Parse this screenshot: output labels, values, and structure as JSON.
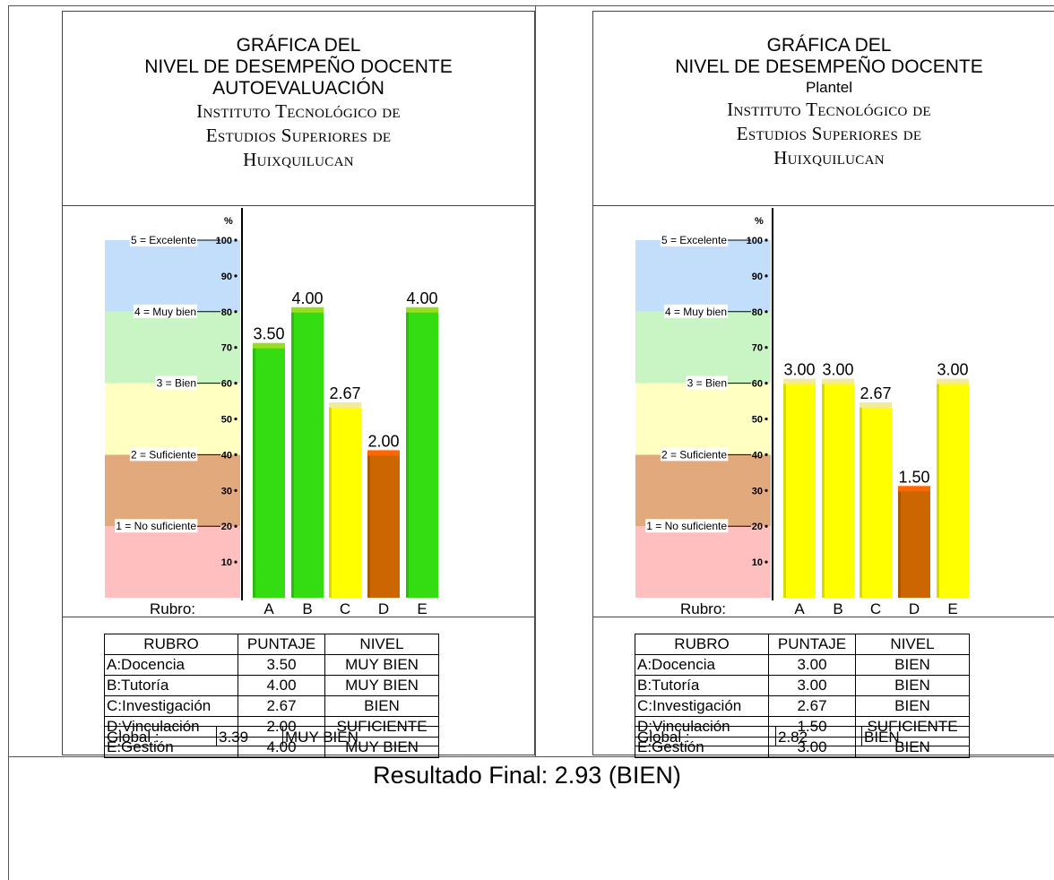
{
  "footer": {
    "result": "Resultado Final: 2.93 (BIEN)"
  },
  "scale": {
    "percent_symbol": "%",
    "ticks": [
      "100",
      "90",
      "80",
      "70",
      "60",
      "50",
      "40",
      "30",
      "20",
      "10"
    ],
    "levels": [
      {
        "label": "5 = Excelente",
        "at": 100
      },
      {
        "label": "4 = Muy bien",
        "at": 80
      },
      {
        "label": "3 = Bien",
        "at": 60
      },
      {
        "label": "2 = Suficiente",
        "at": 40
      },
      {
        "label": "1 = No suficiente",
        "at": 20
      }
    ],
    "band_colors": [
      "#ffbfbf",
      "#e2a97d",
      "#ffffc2",
      "#c8f5c3",
      "#c3defa"
    ],
    "rubro_label": "Rubro:"
  },
  "panels": [
    {
      "title_line1": "GRÁFICA DEL",
      "title_line2": "NIVEL DE DESEMPEÑO DOCENTE",
      "title_line3": "AUTOEVALUACIÓN",
      "institution_line1": "Instituto Tecnológico de",
      "institution_line2": "Estudios Superiores de",
      "institution_line3": "Huixquilucan",
      "table_headers": [
        "RUBRO",
        "PUNTAJE",
        "NIVEL"
      ],
      "rows": [
        {
          "rubro": "A:Docencia",
          "puntaje": "3.50",
          "nivel": "MUY BIEN"
        },
        {
          "rubro": "B:Tutoría",
          "puntaje": "4.00",
          "nivel": "MUY BIEN"
        },
        {
          "rubro": "C:Investigación",
          "puntaje": "2.67",
          "nivel": "BIEN"
        },
        {
          "rubro": "D:Vinculación",
          "puntaje": "2.00",
          "nivel": "SUFICIENTE"
        },
        {
          "rubro": "E:Gestión",
          "puntaje": "4.00",
          "nivel": "MUY BIEN"
        }
      ],
      "global_label": "Global :",
      "global_value": "3.39",
      "global_level": "MUY BIEN"
    },
    {
      "title_line1": "GRÁFICA DEL",
      "title_line2": "NIVEL DE DESEMPEÑO DOCENTE",
      "title_line3": "Plantel",
      "institution_line1": "Instituto Tecnológico de",
      "institution_line2": "Estudios Superiores de",
      "institution_line3": "Huixquilucan",
      "table_headers": [
        "RUBRO",
        "PUNTAJE",
        "NIVEL"
      ],
      "rows": [
        {
          "rubro": "A:Docencia",
          "puntaje": "3.00",
          "nivel": "BIEN"
        },
        {
          "rubro": "B:Tutoría",
          "puntaje": "3.00",
          "nivel": "BIEN"
        },
        {
          "rubro": "C:Investigación",
          "puntaje": "2.67",
          "nivel": "BIEN"
        },
        {
          "rubro": "D:Vinculación",
          "puntaje": "1.50",
          "nivel": "SUFICIENTE"
        },
        {
          "rubro": "E:Gestión",
          "puntaje": "3.00",
          "nivel": "BIEN"
        }
      ],
      "global_label": "Global :",
      "global_value": "2.82",
      "global_level": "BIEN"
    }
  ],
  "chart_data": [
    {
      "type": "bar",
      "categories": [
        "A",
        "B",
        "C",
        "D",
        "E"
      ],
      "values": [
        3.5,
        4.0,
        2.67,
        2.0,
        4.0
      ],
      "labels": [
        "3.50",
        "4.00",
        "2.67",
        "2.00",
        "4.00"
      ],
      "percent": [
        70,
        80,
        53.4,
        40,
        80
      ],
      "colors": [
        "#33dd11",
        "#33dd11",
        "#ffff00",
        "#cc6600",
        "#33dd11"
      ],
      "cap_colors": [
        "#99dd22",
        "#99dd22",
        "#f3eb9a",
        "#ff6600",
        "#99dd22"
      ],
      "ylabel": "%",
      "ylim": [
        0,
        100
      ],
      "xlabel": "Rubro:"
    },
    {
      "type": "bar",
      "categories": [
        "A",
        "B",
        "C",
        "D",
        "E"
      ],
      "values": [
        3.0,
        3.0,
        2.67,
        1.5,
        3.0
      ],
      "labels": [
        "3.00",
        "3.00",
        "2.67",
        "1.50",
        "3.00"
      ],
      "percent": [
        60,
        60,
        53.4,
        30,
        60
      ],
      "colors": [
        "#ffff00",
        "#ffff00",
        "#ffff00",
        "#cc6600",
        "#ffff00"
      ],
      "cap_colors": [
        "#f3eb9a",
        "#f3eb9a",
        "#f3eb9a",
        "#ff6600",
        "#f3eb9a"
      ],
      "ylabel": "%",
      "ylim": [
        0,
        100
      ],
      "xlabel": "Rubro:"
    }
  ]
}
